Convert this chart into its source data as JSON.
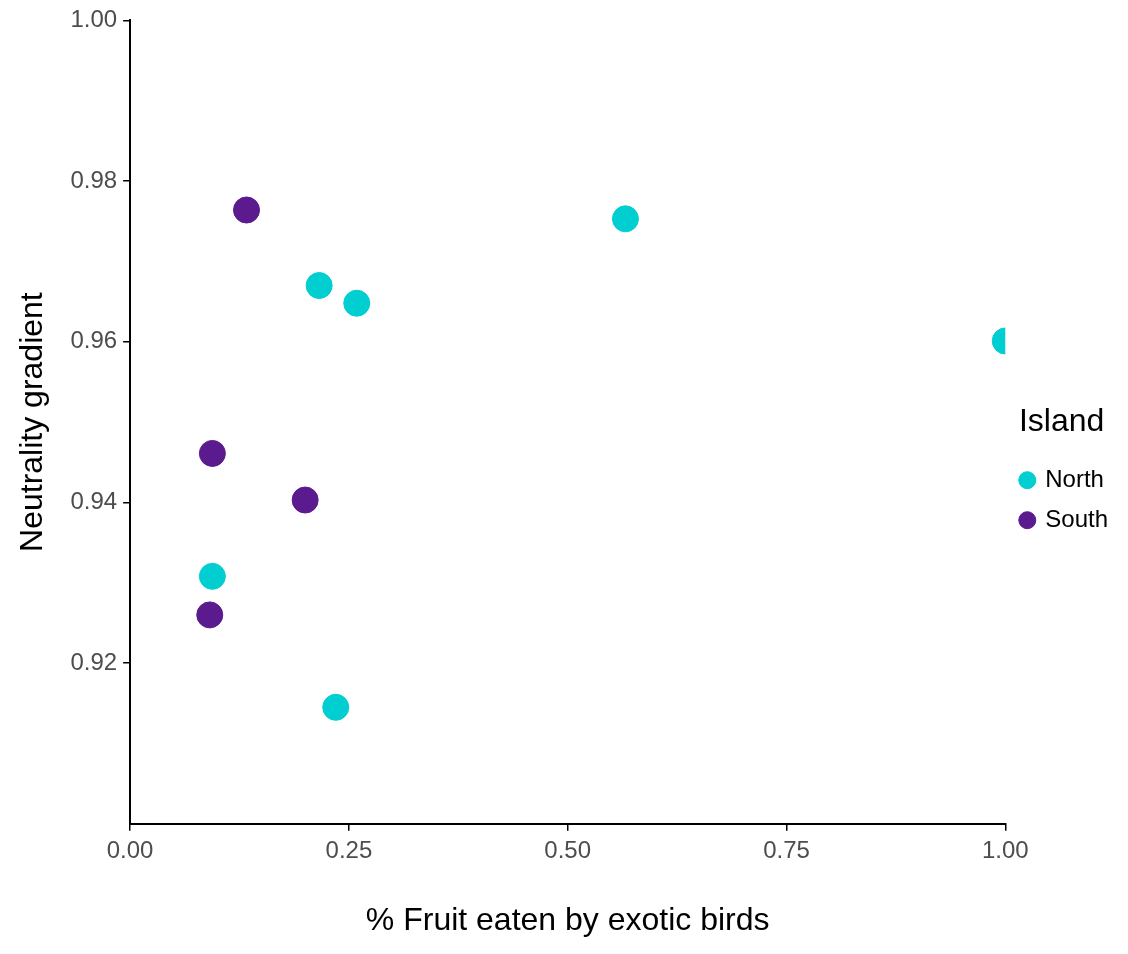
{
  "chart_data": {
    "type": "scatter",
    "xlabel": "% Fruit eaten by exotic birds",
    "ylabel": "Neutrality gradient",
    "legend_title": "Island",
    "series": [
      {
        "name": "North",
        "color": "#00ced1",
        "x": [
          0.566,
          0.216,
          0.259,
          1.0,
          0.094,
          0.235
        ],
        "values": [
          0.9753,
          0.967,
          0.9648,
          0.9601,
          0.9308,
          0.9145
        ]
      },
      {
        "name": "South",
        "color": "#5b1a8e",
        "x": [
          0.133,
          0.094,
          0.2,
          0.091
        ],
        "values": [
          0.9764,
          0.9461,
          0.9403,
          0.926
        ]
      }
    ],
    "xlim": [
      0,
      1
    ],
    "ylim": [
      0.9,
      1
    ],
    "xticks": [
      {
        "value": 0,
        "label": "0.00"
      },
      {
        "value": 0.25,
        "label": "0.25"
      },
      {
        "value": 0.5,
        "label": "0.50"
      },
      {
        "value": 0.75,
        "label": "0.75"
      },
      {
        "value": 1,
        "label": "1.00"
      }
    ],
    "yticks": [
      {
        "value": 0.92,
        "label": "0.92"
      },
      {
        "value": 0.94,
        "label": "0.94"
      },
      {
        "value": 0.96,
        "label": "0.96"
      },
      {
        "value": 0.98,
        "label": "0.98"
      },
      {
        "value": 1,
        "label": "1.00"
      }
    ],
    "grid": false,
    "legend": "right",
    "marker": "circle"
  }
}
